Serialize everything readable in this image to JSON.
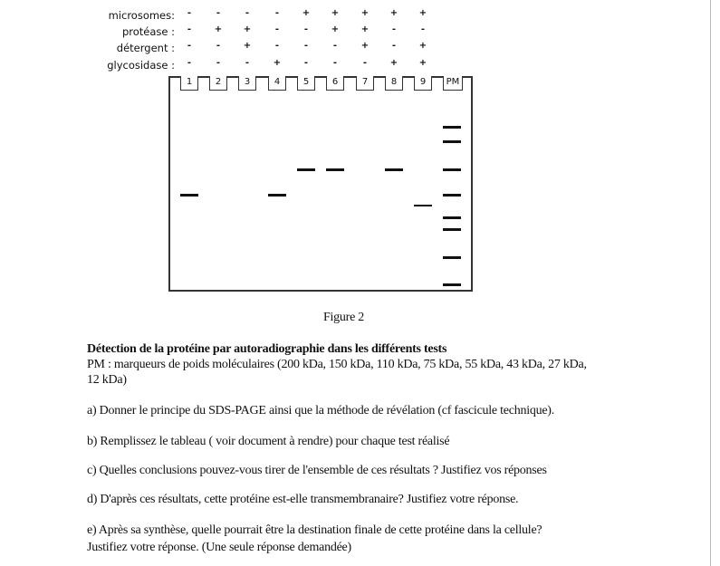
{
  "table": {
    "rows": [
      {
        "label": "microsomes:",
        "values": [
          "-",
          "-",
          "-",
          "-",
          "+",
          "+",
          "+",
          "+",
          "+"
        ]
      },
      {
        "label": "protéase :",
        "values": [
          "-",
          "+",
          "+",
          "-",
          "-",
          "+",
          "+",
          "-",
          "-"
        ]
      },
      {
        "label": "détergent :",
        "values": [
          "-",
          "-",
          "+",
          "-",
          "-",
          "-",
          "+",
          "-",
          "+"
        ]
      },
      {
        "label": "glycosidase :",
        "values": [
          "-",
          "-",
          "-",
          "+",
          "-",
          "-",
          "-",
          "+",
          "+"
        ]
      }
    ]
  },
  "gel": {
    "lanes": [
      "1",
      "2",
      "3",
      "4",
      "5",
      "6",
      "7",
      "8",
      "9",
      "PM"
    ],
    "markers_kDa": [
      200,
      150,
      110,
      75,
      55,
      43,
      27,
      12
    ],
    "bands": [
      {
        "lane": "1",
        "kDa": 75
      },
      {
        "lane": "4",
        "kDa": 75
      },
      {
        "lane": "5",
        "kDa": 110
      },
      {
        "lane": "6",
        "kDa": 110
      },
      {
        "lane": "8",
        "kDa": 110
      },
      {
        "lane": "9",
        "kDa": 65
      }
    ]
  },
  "caption": "Figure 2",
  "title": "Détection de la protéine par autoradiographie dans les différents tests",
  "legend_line1": "PM : marqueurs de poids moléculaires (200 kDa, 150 kDa, 110 kDa, 75 kDa, 55 kDa, 43 kDa, 27 kDa,",
  "legend_line2": "12 kDa)",
  "questions": {
    "a": "a) Donner le principe du SDS-PAGE ainsi que la méthode de révélation (cf fascicule technique).",
    "b": "b) Remplissez le tableau ( voir document à rendre) pour chaque test réalisé",
    "c": "c) Quelles conclusions pouvez-vous tirer de l'ensemble de ces résultats ? Justifiez vos réponses",
    "d": "d) D'après ces résultats, cette protéine est-elle transmembranaire? Justifiez votre réponse.",
    "e1": "e) Après sa synthèse, quelle pourrait être la destination finale de cette protéine dans la cellule?",
    "e2": "Justifiez votre réponse. (Une seule réponse demandée)"
  }
}
